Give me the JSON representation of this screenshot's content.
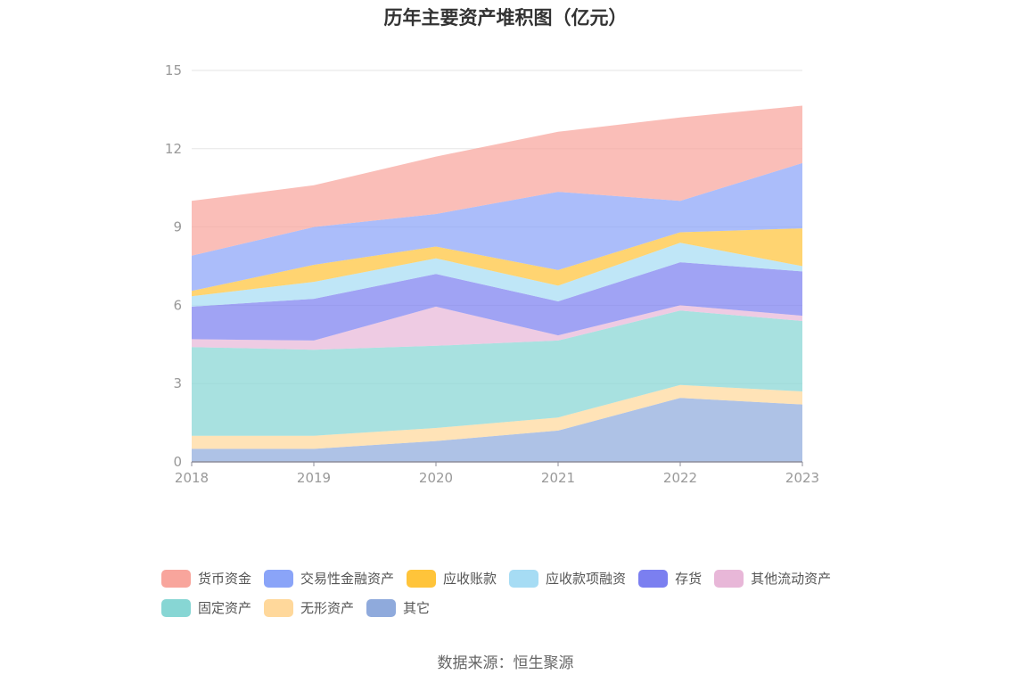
{
  "chart_data": {
    "type": "area",
    "stacked": true,
    "title": "历年主要资产堆积图（亿元）",
    "x": [
      "2018",
      "2019",
      "2020",
      "2021",
      "2022",
      "2023"
    ],
    "ylim": [
      0,
      15
    ],
    "yticks": [
      "0",
      "3",
      "6",
      "9",
      "12",
      "15"
    ],
    "grid": true,
    "legend_position": "bottom",
    "series": [
      {
        "name": "其它",
        "color": "#8faadc",
        "values": [
          0.5,
          0.5,
          0.8,
          1.2,
          2.45,
          2.2
        ]
      },
      {
        "name": "无形资产",
        "color": "#ffd89b",
        "values": [
          0.5,
          0.5,
          0.5,
          0.5,
          0.5,
          0.5
        ]
      },
      {
        "name": "固定资产",
        "color": "#87d6d4",
        "values": [
          3.4,
          3.3,
          3.15,
          2.95,
          2.85,
          2.7
        ]
      },
      {
        "name": "其他流动资产",
        "color": "#e8b7d8",
        "values": [
          0.3,
          0.35,
          1.5,
          0.2,
          0.2,
          0.2
        ]
      },
      {
        "name": "存货",
        "color": "#7b7ff0",
        "values": [
          1.25,
          1.6,
          1.25,
          1.3,
          1.65,
          1.7
        ]
      },
      {
        "name": "应收款项融资",
        "color": "#a6dcf4",
        "values": [
          0.4,
          0.65,
          0.6,
          0.6,
          0.75,
          0.2
        ]
      },
      {
        "name": "应收账款",
        "color": "#ffc43a",
        "values": [
          0.2,
          0.65,
          0.45,
          0.6,
          0.4,
          1.45
        ]
      },
      {
        "name": "交易性金融资产",
        "color": "#8aa4f8",
        "values": [
          1.35,
          1.45,
          1.25,
          3.0,
          1.2,
          2.5
        ]
      },
      {
        "name": "货币资金",
        "color": "#f8a59c",
        "values": [
          2.1,
          1.6,
          2.2,
          2.3,
          3.2,
          2.2
        ]
      }
    ]
  },
  "legend_rows": [
    [
      "货币资金",
      "交易性金融资产",
      "应收账款",
      "应收款项融资",
      "存货",
      "其他流动资产"
    ],
    [
      "固定资产",
      "无形资产",
      "其它"
    ]
  ],
  "source": "数据来源：恒生聚源"
}
